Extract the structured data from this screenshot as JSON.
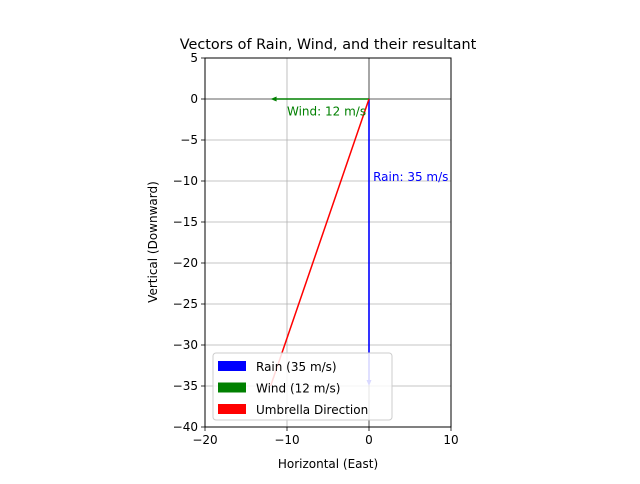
{
  "chart_data": {
    "type": "line",
    "title": "Vectors of Rain, Wind, and their resultant",
    "xlabel": "Horizontal (East)",
    "ylabel": "Vertical (Downward)",
    "xlim": [
      -20,
      10
    ],
    "ylim": [
      -40,
      5
    ],
    "xticks": [
      -20,
      -10,
      0,
      10
    ],
    "xtick_labels": [
      "−20",
      "−10",
      "0",
      "10"
    ],
    "yticks": [
      5,
      0,
      -5,
      -10,
      -15,
      -20,
      -25,
      -30,
      -35,
      -40
    ],
    "ytick_labels": [
      "5",
      "0",
      "−5",
      "−10",
      "−15",
      "−20",
      "−25",
      "−30",
      "−35",
      "−40"
    ],
    "grid": true,
    "legend_position": "lower-left",
    "series": [
      {
        "name": "Rain (35 m/s)",
        "color": "#0000ff",
        "start": [
          0,
          0
        ],
        "end": [
          0,
          -35
        ]
      },
      {
        "name": "Wind (12 m/s)",
        "color": "#008000",
        "start": [
          0,
          0
        ],
        "end": [
          -12,
          0
        ]
      },
      {
        "name": "Umbrella Direction",
        "color": "#ff0000",
        "start": [
          0,
          0
        ],
        "end": [
          -12,
          -35
        ]
      }
    ],
    "annotations": [
      {
        "text": "Rain: 35 m/s",
        "x": 0.5,
        "y": -9.5,
        "color": "#0000ff"
      },
      {
        "text": "Wind: 12 m/s",
        "x": -10,
        "y": -1.5,
        "color": "#008000"
      }
    ]
  }
}
